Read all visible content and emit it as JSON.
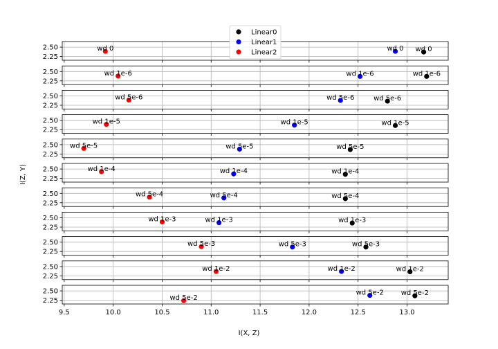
{
  "chart_data": {
    "type": "scatter",
    "xlabel": "I(X, Z)",
    "ylabel": "I(Z, Y)",
    "xlim": [
      9.48,
      13.42
    ],
    "ylim": [
      2.15,
      2.65
    ],
    "x_ticks": [
      "9.5",
      "10.0",
      "10.5",
      "11.0",
      "11.5",
      "12.0",
      "12.5",
      "13.0"
    ],
    "y_ticks": [
      "2.50",
      "2.25"
    ],
    "grid": true,
    "legend": {
      "placement": "top-center",
      "entries": [
        {
          "name": "Linear0",
          "color": "#000000"
        },
        {
          "name": "Linear1",
          "color": "#0000ff"
        },
        {
          "name": "Linear2",
          "color": "#ff0000"
        }
      ]
    },
    "series_colors": {
      "Linear0": "#000000",
      "Linear1": "#0000ff",
      "Linear2": "#ff0000"
    },
    "panels": [
      {
        "label": "wd 0",
        "points": [
          {
            "series": "Linear0",
            "x": 13.17,
            "y": 2.37
          },
          {
            "series": "Linear1",
            "x": 12.88,
            "y": 2.39
          },
          {
            "series": "Linear2",
            "x": 9.92,
            "y": 2.39
          }
        ]
      },
      {
        "label": "wd 1e-6",
        "points": [
          {
            "series": "Linear0",
            "x": 13.2,
            "y": 2.37
          },
          {
            "series": "Linear1",
            "x": 12.52,
            "y": 2.37
          },
          {
            "series": "Linear2",
            "x": 10.05,
            "y": 2.38
          }
        ]
      },
      {
        "label": "wd 5e-6",
        "points": [
          {
            "series": "Linear0",
            "x": 12.8,
            "y": 2.36
          },
          {
            "series": "Linear1",
            "x": 12.32,
            "y": 2.38
          },
          {
            "series": "Linear2",
            "x": 10.16,
            "y": 2.39
          }
        ]
      },
      {
        "label": "wd 1e-5",
        "points": [
          {
            "series": "Linear0",
            "x": 12.88,
            "y": 2.36
          },
          {
            "series": "Linear1",
            "x": 11.85,
            "y": 2.37
          },
          {
            "series": "Linear2",
            "x": 9.93,
            "y": 2.39
          }
        ]
      },
      {
        "label": "wd 5e-5",
        "points": [
          {
            "series": "Linear0",
            "x": 12.42,
            "y": 2.37
          },
          {
            "series": "Linear1",
            "x": 11.29,
            "y": 2.38
          },
          {
            "series": "Linear2",
            "x": 9.7,
            "y": 2.4
          }
        ]
      },
      {
        "label": "wd 1e-4",
        "points": [
          {
            "series": "Linear0",
            "x": 12.37,
            "y": 2.36
          },
          {
            "series": "Linear1",
            "x": 11.23,
            "y": 2.37
          },
          {
            "series": "Linear2",
            "x": 9.88,
            "y": 2.43
          }
        ]
      },
      {
        "label": "wd 5e-4",
        "points": [
          {
            "series": "Linear0",
            "x": 12.37,
            "y": 2.36
          },
          {
            "series": "Linear1",
            "x": 11.13,
            "y": 2.38
          },
          {
            "series": "Linear2",
            "x": 10.37,
            "y": 2.4
          }
        ]
      },
      {
        "label": "wd 1e-3",
        "points": [
          {
            "series": "Linear0",
            "x": 12.44,
            "y": 2.36
          },
          {
            "series": "Linear1",
            "x": 11.08,
            "y": 2.37
          },
          {
            "series": "Linear2",
            "x": 10.5,
            "y": 2.39
          }
        ]
      },
      {
        "label": "wd 5e-3",
        "points": [
          {
            "series": "Linear0",
            "x": 12.58,
            "y": 2.37
          },
          {
            "series": "Linear1",
            "x": 11.83,
            "y": 2.37
          },
          {
            "series": "Linear2",
            "x": 10.9,
            "y": 2.38
          }
        ]
      },
      {
        "label": "wd 1e-2",
        "points": [
          {
            "series": "Linear0",
            "x": 13.03,
            "y": 2.36
          },
          {
            "series": "Linear1",
            "x": 12.33,
            "y": 2.37
          },
          {
            "series": "Linear2",
            "x": 11.05,
            "y": 2.37
          }
        ]
      },
      {
        "label": "wd 5e-2",
        "points": [
          {
            "series": "Linear0",
            "x": 13.08,
            "y": 2.37
          },
          {
            "series": "Linear1",
            "x": 12.62,
            "y": 2.38
          },
          {
            "series": "Linear2",
            "x": 10.72,
            "y": 2.24
          }
        ]
      }
    ]
  }
}
